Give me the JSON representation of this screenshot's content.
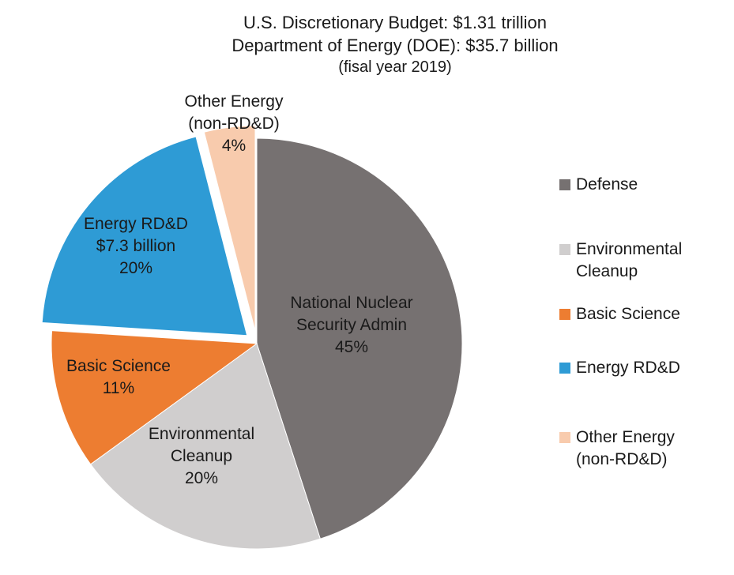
{
  "chart_data": {
    "type": "pie",
    "title_lines": [
      "U.S. Discretionary Budget: $1.31 trillion",
      "Department of Energy (DOE): $35.7 billion",
      "(fisal year 2019)"
    ],
    "start_angle_deg": 0,
    "direction": "clockwise",
    "slices": [
      {
        "name": "National Nuclear Security Admin",
        "value_pct": 45,
        "color": "#767171",
        "label_lines": [
          "National Nuclear",
          "Security Admin",
          "45%"
        ],
        "exploded": false
      },
      {
        "name": "Environmental Cleanup",
        "value_pct": 20,
        "color": "#d0cece",
        "label_lines": [
          "Environmental",
          "Cleanup",
          "20%"
        ],
        "exploded": false
      },
      {
        "name": "Basic Science",
        "value_pct": 11,
        "color": "#ed7d31",
        "label_lines": [
          "Basic Science",
          "11%"
        ],
        "exploded": false
      },
      {
        "name": "Energy RD&D",
        "value_pct": 20,
        "amount": "$7.3 billion",
        "color": "#2e9bd5",
        "label_lines": [
          "Energy RD&D",
          "$7.3 billion",
          "20%"
        ],
        "exploded": true
      },
      {
        "name": "Other Energy (non-RD&D)",
        "value_pct": 4,
        "color": "#f8cbad",
        "label_lines": [
          "Other Energy",
          "(non-RD&D)",
          "4%"
        ],
        "exploded": true
      }
    ],
    "legend": {
      "position": "right",
      "items": [
        {
          "label_lines": [
            "Defense"
          ],
          "color": "#767171"
        },
        {
          "label_lines": [
            "Environmental",
            "Cleanup"
          ],
          "color": "#d0cece"
        },
        {
          "label_lines": [
            "Basic Science"
          ],
          "color": "#ed7d31"
        },
        {
          "label_lines": [
            "Energy RD&D"
          ],
          "color": "#2e9bd5"
        },
        {
          "label_lines": [
            "Other Energy",
            "(non-RD&D)"
          ],
          "color": "#f8cbad"
        }
      ]
    }
  }
}
